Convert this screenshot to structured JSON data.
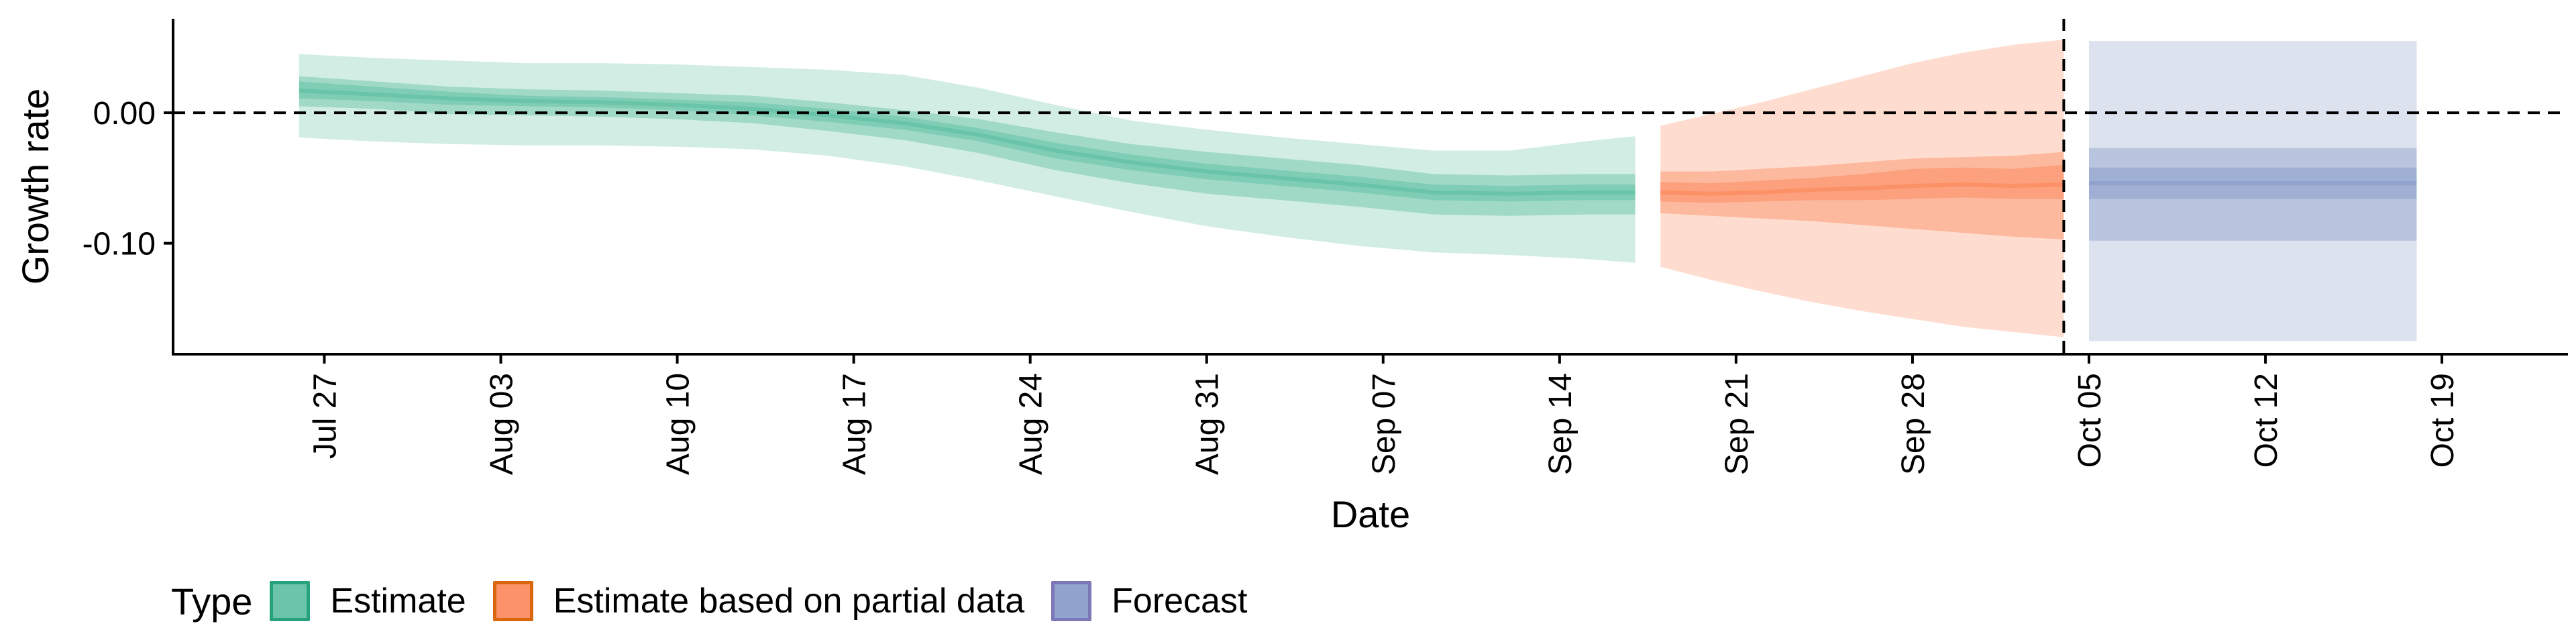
{
  "chart_data": {
    "type": "area",
    "xlabel": "Date",
    "ylabel": "Growth rate",
    "ylim": [
      -0.185,
      0.072
    ],
    "yticks": [
      {
        "value": 0.0,
        "label": "0.00"
      },
      {
        "value": -0.1,
        "label": "-0.10"
      }
    ],
    "xlim": [
      "2020-07-21",
      "2020-10-24"
    ],
    "xticks": [
      {
        "date": "2020-07-27",
        "label": "Jul 27"
      },
      {
        "date": "2020-08-03",
        "label": "Aug 03"
      },
      {
        "date": "2020-08-10",
        "label": "Aug 10"
      },
      {
        "date": "2020-08-17",
        "label": "Aug 17"
      },
      {
        "date": "2020-08-24",
        "label": "Aug 24"
      },
      {
        "date": "2020-08-31",
        "label": "Aug 31"
      },
      {
        "date": "2020-09-07",
        "label": "Sep 07"
      },
      {
        "date": "2020-09-14",
        "label": "Sep 14"
      },
      {
        "date": "2020-09-21",
        "label": "Sep 21"
      },
      {
        "date": "2020-09-28",
        "label": "Sep 28"
      },
      {
        "date": "2020-10-05",
        "label": "Oct 05"
      },
      {
        "date": "2020-10-12",
        "label": "Oct 12"
      },
      {
        "date": "2020-10-19",
        "label": "Oct 19"
      }
    ],
    "reference_lines": [
      {
        "orientation": "horizontal",
        "value": 0.0,
        "style": "dashed"
      },
      {
        "orientation": "vertical",
        "date": "2020-10-04",
        "style": "dashed"
      }
    ],
    "legend": {
      "position": "bottom-left",
      "title": "Type"
    },
    "series": [
      {
        "name": "Estimate",
        "color": "#1b9e77",
        "fill": "#66c2a5",
        "x": [
          "2020-07-26",
          "2020-07-29",
          "2020-08-01",
          "2020-08-04",
          "2020-08-07",
          "2020-08-10",
          "2020-08-13",
          "2020-08-16",
          "2020-08-19",
          "2020-08-22",
          "2020-08-25",
          "2020-08-28",
          "2020-08-31",
          "2020-09-03",
          "2020-09-06",
          "2020-09-09",
          "2020-09-12",
          "2020-09-15",
          "2020-09-17"
        ],
        "median": [
          0.017,
          0.014,
          0.011,
          0.009,
          0.008,
          0.006,
          0.003,
          -0.002,
          -0.008,
          -0.017,
          -0.029,
          -0.038,
          -0.045,
          -0.05,
          -0.055,
          -0.061,
          -0.062,
          -0.061,
          -0.061
        ],
        "ci_20": [
          [
            0.011,
            0.024
          ],
          [
            0.009,
            0.02
          ],
          [
            0.006,
            0.016
          ],
          [
            0.005,
            0.013
          ],
          [
            0.004,
            0.012
          ],
          [
            0.002,
            0.01
          ],
          [
            -0.002,
            0.008
          ],
          [
            -0.007,
            0.003
          ],
          [
            -0.013,
            -0.003
          ],
          [
            -0.022,
            -0.012
          ],
          [
            -0.035,
            -0.023
          ],
          [
            -0.044,
            -0.032
          ],
          [
            -0.051,
            -0.039
          ],
          [
            -0.056,
            -0.044
          ],
          [
            -0.061,
            -0.049
          ],
          [
            -0.067,
            -0.055
          ],
          [
            -0.068,
            -0.056
          ],
          [
            -0.067,
            -0.055
          ],
          [
            -0.067,
            -0.055
          ]
        ],
        "ci_50": [
          [
            0.005,
            0.028
          ],
          [
            0.003,
            0.024
          ],
          [
            -0.001,
            0.02
          ],
          [
            -0.002,
            0.018
          ],
          [
            -0.003,
            0.017
          ],
          [
            -0.005,
            0.015
          ],
          [
            -0.008,
            0.013
          ],
          [
            -0.014,
            0.008
          ],
          [
            -0.021,
            0.002
          ],
          [
            -0.031,
            -0.005
          ],
          [
            -0.044,
            -0.015
          ],
          [
            -0.054,
            -0.024
          ],
          [
            -0.062,
            -0.03
          ],
          [
            -0.067,
            -0.035
          ],
          [
            -0.072,
            -0.04
          ],
          [
            -0.078,
            -0.047
          ],
          [
            -0.079,
            -0.048
          ],
          [
            -0.078,
            -0.047
          ],
          [
            -0.078,
            -0.047
          ]
        ],
        "ci_90": [
          [
            -0.019,
            0.045
          ],
          [
            -0.022,
            0.042
          ],
          [
            -0.024,
            0.04
          ],
          [
            -0.025,
            0.038
          ],
          [
            -0.025,
            0.038
          ],
          [
            -0.026,
            0.037
          ],
          [
            -0.028,
            0.035
          ],
          [
            -0.033,
            0.033
          ],
          [
            -0.041,
            0.029
          ],
          [
            -0.052,
            0.019
          ],
          [
            -0.064,
            0.006
          ],
          [
            -0.076,
            -0.006
          ],
          [
            -0.087,
            -0.013
          ],
          [
            -0.095,
            -0.019
          ],
          [
            -0.102,
            -0.024
          ],
          [
            -0.107,
            -0.029
          ],
          [
            -0.109,
            -0.029
          ],
          [
            -0.112,
            -0.022
          ],
          [
            -0.115,
            -0.018
          ]
        ]
      },
      {
        "name": "Estimate based on partial data",
        "color": "#d95f02",
        "fill": "#fc8d62",
        "x": [
          "2020-09-18",
          "2020-09-20",
          "2020-09-22",
          "2020-09-24",
          "2020-09-26",
          "2020-09-28",
          "2020-09-30",
          "2020-10-02",
          "2020-10-04"
        ],
        "median": [
          -0.061,
          -0.062,
          -0.061,
          -0.059,
          -0.058,
          -0.056,
          -0.055,
          -0.056,
          -0.055
        ],
        "ci_20": [
          [
            -0.068,
            -0.053
          ],
          [
            -0.069,
            -0.054
          ],
          [
            -0.068,
            -0.052
          ],
          [
            -0.067,
            -0.05
          ],
          [
            -0.067,
            -0.047
          ],
          [
            -0.066,
            -0.043
          ],
          [
            -0.065,
            -0.042
          ],
          [
            -0.066,
            -0.043
          ],
          [
            -0.066,
            -0.04
          ]
        ],
        "ci_50": [
          [
            -0.077,
            -0.045
          ],
          [
            -0.079,
            -0.045
          ],
          [
            -0.081,
            -0.043
          ],
          [
            -0.083,
            -0.041
          ],
          [
            -0.086,
            -0.038
          ],
          [
            -0.089,
            -0.035
          ],
          [
            -0.092,
            -0.034
          ],
          [
            -0.095,
            -0.033
          ],
          [
            -0.097,
            -0.03
          ]
        ],
        "ci_90": [
          [
            -0.118,
            -0.01
          ],
          [
            -0.128,
            -0.001
          ],
          [
            -0.137,
            0.008
          ],
          [
            -0.145,
            0.018
          ],
          [
            -0.152,
            0.028
          ],
          [
            -0.158,
            0.038
          ],
          [
            -0.164,
            0.046
          ],
          [
            -0.168,
            0.052
          ],
          [
            -0.172,
            0.056
          ]
        ]
      },
      {
        "name": "Forecast",
        "color": "#7570b3",
        "fill": "#8da0cb",
        "x": [
          "2020-10-05",
          "2020-10-18"
        ],
        "median": [
          -0.054,
          -0.054
        ],
        "ci_20": [
          [
            -0.066,
            -0.042
          ],
          [
            -0.066,
            -0.042
          ]
        ],
        "ci_50": [
          [
            -0.098,
            -0.027
          ],
          [
            -0.098,
            -0.027
          ]
        ],
        "ci_90": [
          [
            -0.175,
            0.055
          ],
          [
            -0.175,
            0.055
          ]
        ]
      }
    ]
  }
}
